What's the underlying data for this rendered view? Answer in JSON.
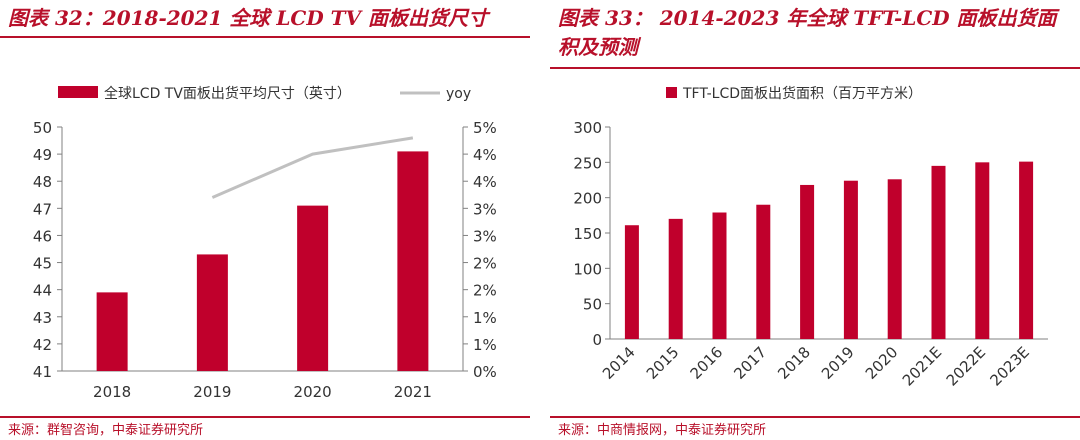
{
  "colors": {
    "accent": "#b8102a",
    "bar": "#c0002c",
    "yoy_line": "#c0c0c0",
    "axis": "#808080",
    "text": "#333333"
  },
  "left": {
    "title": "图表 32：2018-2021 全球 LCD TV 面板出货尺寸",
    "source": "来源：群智咨询，中泰证券研究所"
  },
  "right": {
    "title": "图表 33： 2014-2023 年全球 TFT-LCD 面板出货面积及预测",
    "source": "来源：中商情报网，中泰证券研究所"
  },
  "chart_data": [
    {
      "type": "bar",
      "title": "图表 32：2018-2021 全球 LCD TV 面板出货尺寸",
      "categories": [
        "2018",
        "2019",
        "2020",
        "2021"
      ],
      "series": [
        {
          "name": "全球LCD TV面板出货平均尺寸（英寸）",
          "kind": "bar",
          "axis": "left",
          "values": [
            43.9,
            45.3,
            47.1,
            49.1
          ]
        },
        {
          "name": "yoy",
          "kind": "line",
          "axis": "right",
          "values": [
            null,
            3.2,
            4.0,
            4.3
          ]
        }
      ],
      "ylim": [
        41,
        50
      ],
      "yticks": [
        "41",
        "42",
        "43",
        "44",
        "45",
        "46",
        "47",
        "48",
        "49",
        "50"
      ],
      "y2lim": [
        0,
        4.5
      ],
      "y2ticks": [
        "0%",
        "1%",
        "1%",
        "2%",
        "2%",
        "3%",
        "3%",
        "4%",
        "4%",
        "5%"
      ],
      "legend": "top"
    },
    {
      "type": "bar",
      "title": "图表 33： 2014-2023 年全球 TFT-LCD 面板出货面积及预测",
      "categories": [
        "2014",
        "2015",
        "2016",
        "2017",
        "2018",
        "2019",
        "2020",
        "2021E",
        "2022E",
        "2023E"
      ],
      "series": [
        {
          "name": "TFT-LCD面板出货面积（百万平方米）",
          "kind": "bar",
          "values": [
            161,
            170,
            179,
            190,
            218,
            224,
            226,
            245,
            250,
            251
          ]
        }
      ],
      "ylim": [
        0,
        300
      ],
      "yticks": [
        "0",
        "50",
        "100",
        "150",
        "200",
        "250",
        "300"
      ],
      "legend": "top"
    }
  ]
}
